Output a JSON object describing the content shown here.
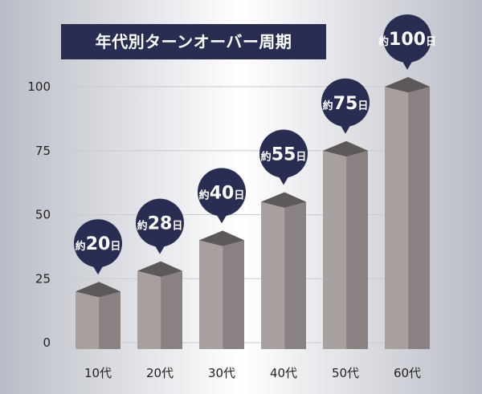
{
  "chart_data": {
    "type": "bar",
    "title": "年代別ターンオーバー周期",
    "categories": [
      "10代",
      "20代",
      "30代",
      "40代",
      "50代",
      "60代"
    ],
    "values": [
      20,
      28,
      40,
      55,
      75,
      100
    ],
    "value_labels": [
      {
        "prefix": "約",
        "num": "20",
        "suffix": "日"
      },
      {
        "prefix": "約",
        "num": "28",
        "suffix": "日"
      },
      {
        "prefix": "約",
        "num": "40",
        "suffix": "日"
      },
      {
        "prefix": "約",
        "num": "55",
        "suffix": "日"
      },
      {
        "prefix": "約",
        "num": "75",
        "suffix": "日"
      },
      {
        "prefix": "約",
        "num": "100",
        "suffix": "日"
      }
    ],
    "yticks": [
      0,
      25,
      50,
      75,
      100
    ],
    "ylim": [
      0,
      100
    ],
    "xlabel": "",
    "ylabel": "",
    "grid": true,
    "bar_style": "3d-box",
    "colors": {
      "bar_front": "#a89f9f",
      "bar_side": "#8a8282",
      "bar_top": "#5f5858",
      "bubble": "#2a2d52",
      "title_bg": "#2a2d52",
      "grid": "#c9cbd2",
      "background_center": "#ffffff",
      "background_edge": "#b9bcc6"
    }
  }
}
